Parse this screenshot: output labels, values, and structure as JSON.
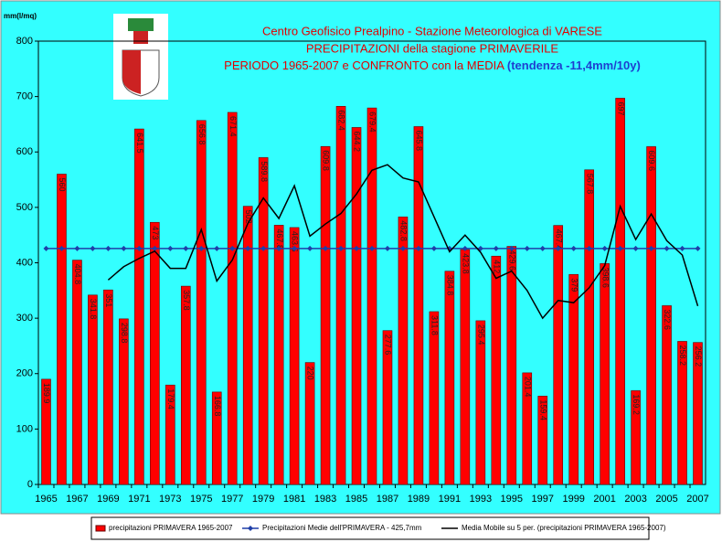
{
  "chart_data": {
    "type": "bar",
    "title_lines": [
      "Centro Geofisico Prealpino - Stazione Meteorologica di VARESE",
      "PRECIPITAZIONI della stagione PRIMAVERILE",
      "PERIODO 1965-2007 e CONFRONTO con la MEDIA"
    ],
    "title_note": "(tendenza -11,4mm/10y)",
    "y_label": "mm(l/mq)",
    "categories": [
      "1965",
      null,
      "1967",
      null,
      "1969",
      null,
      "1971",
      null,
      "1973",
      null,
      "1975",
      null,
      "1977",
      null,
      "1979",
      null,
      "1981",
      null,
      "1983",
      null,
      "1985",
      null,
      "1987",
      null,
      "1989",
      null,
      "1991",
      null,
      "1993",
      null,
      "1995",
      null,
      "1997",
      null,
      "1999",
      null,
      "2001",
      null,
      "2003",
      null,
      "2005",
      null,
      "2007"
    ],
    "series": [
      {
        "name": "precipitazioni PRIMAVERA 1965-2007",
        "type": "bar",
        "color": "#ff0000",
        "data_labels": true,
        "values": [
          189.9,
          560.0,
          404.8,
          341.8,
          351.0,
          298.8,
          641.5,
          473.0,
          179.4,
          357.8,
          656.8,
          166.8,
          671.4,
          502.0,
          589.8,
          467.8,
          463.6,
          220.0,
          609.8,
          682.4,
          644.2,
          679.4,
          277.6,
          482.8,
          645.8,
          311.8,
          384.8,
          423.8,
          295.4,
          412.0,
          429.6,
          201.4,
          159.4,
          467.4,
          379.0,
          567.8,
          398.6,
          697.0,
          169.2,
          609.6,
          322.6,
          258.2,
          256.2
        ]
      },
      {
        "name": "Precipitazioni Medie dell'PRIMAVERA - 425,7mm",
        "type": "line",
        "marker": "diamond",
        "color": "#1f3fa8",
        "values": [
          425.7,
          425.7,
          425.7,
          425.7,
          425.7,
          425.7,
          425.7,
          425.7,
          425.7,
          425.7,
          425.7,
          425.7,
          425.7,
          425.7,
          425.7,
          425.7,
          425.7,
          425.7,
          425.7,
          425.7,
          425.7,
          425.7,
          425.7,
          425.7,
          425.7,
          425.7,
          425.7,
          425.7,
          425.7,
          425.7,
          425.7,
          425.7,
          425.7,
          425.7,
          425.7,
          425.7,
          425.7,
          425.7,
          425.7,
          425.7,
          425.7,
          425.7,
          425.7
        ]
      },
      {
        "name": "Media Mobile su 5 per. (precipitazioni PRIMAVERA 1965-2007)",
        "type": "line",
        "color": "#000000",
        "values": [
          null,
          null,
          null,
          null,
          369,
          393,
          408,
          421,
          390,
          390,
          460,
          367,
          405,
          471,
          517,
          480,
          539,
          448,
          470,
          489,
          524,
          567,
          577,
          553,
          546,
          483,
          420,
          450,
          419,
          372,
          385,
          350,
          300,
          332,
          328,
          355,
          395,
          502,
          442,
          488,
          440,
          414,
          322
        ]
      }
    ],
    "ylim": [
      0,
      800
    ],
    "yticks": [
      0,
      100,
      200,
      300,
      400,
      500,
      600,
      700,
      800
    ]
  }
}
